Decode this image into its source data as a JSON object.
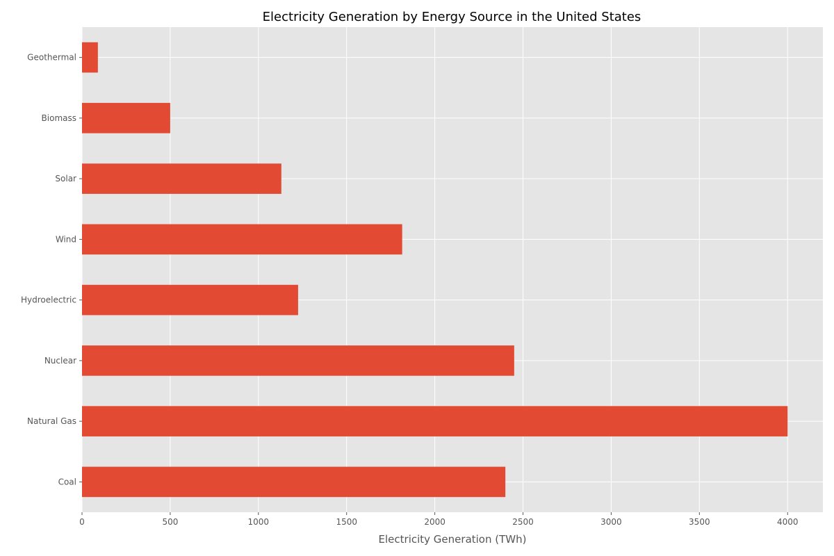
{
  "chart_data": {
    "type": "bar",
    "orientation": "horizontal",
    "title": "Electricity Generation by Energy Source in the United States",
    "xlabel": "Electricity Generation (TWh)",
    "ylabel": "",
    "categories": [
      "Coal",
      "Natural Gas",
      "Nuclear",
      "Hydroelectric",
      "Wind",
      "Solar",
      "Biomass",
      "Geothermal"
    ],
    "values": [
      2400,
      4000,
      2450,
      1225,
      1815,
      1130,
      500,
      90
    ],
    "xlim": [
      0,
      4200
    ],
    "xticks": [
      0,
      500,
      1000,
      1500,
      2000,
      2500,
      3000,
      3500,
      4000
    ],
    "grid": true,
    "legend": "none",
    "colors": {
      "bar": "#E24A33",
      "plot_background": "#E5E5E5",
      "grid": "#FFFFFF"
    }
  }
}
